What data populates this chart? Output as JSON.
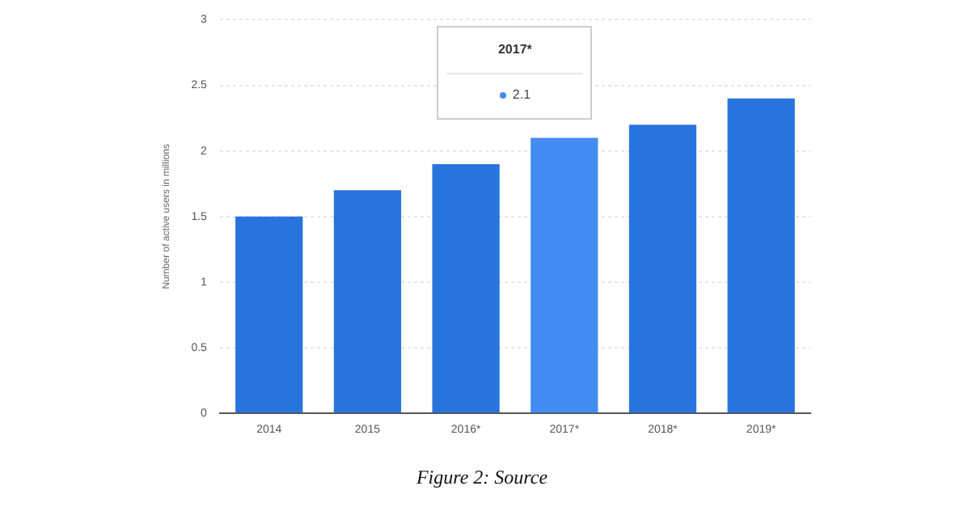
{
  "chart_data": {
    "type": "bar",
    "ylabel": "Number of active users in millions",
    "categories": [
      "2014",
      "2015",
      "2016*",
      "2017*",
      "2018*",
      "2019*"
    ],
    "values": [
      1.5,
      1.7,
      1.9,
      2.1,
      2.2,
      2.4
    ],
    "colors": [
      "#2774dc",
      "#2774dc",
      "#2774dc",
      "#428cf2",
      "#2774dc",
      "#2774dc"
    ],
    "ylim": [
      0,
      3
    ],
    "yticks": [
      0,
      0.5,
      1,
      1.5,
      2,
      2.5,
      3
    ],
    "grid": "y",
    "annotations": [
      "2017*",
      "2.1",
      "Figure 2: Source"
    ]
  }
}
